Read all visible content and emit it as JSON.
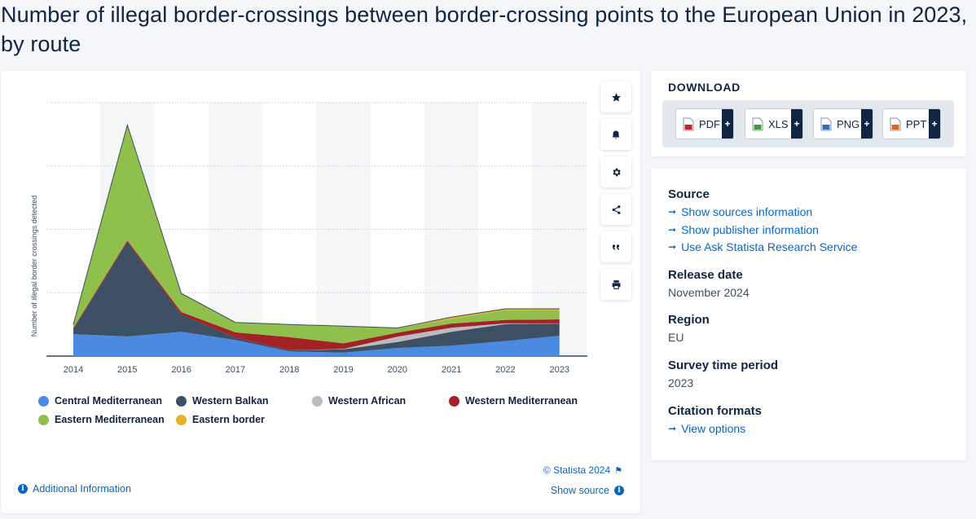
{
  "page": {
    "title": "Number of illegal border-crossings between border-crossing points to the European Union in 2023, by route"
  },
  "chart_data": {
    "type": "area",
    "stacked": true,
    "title": "Number of illegal border-crossings between border-crossing points to the European Union in 2023, by route",
    "xlabel": "",
    "ylabel": "Number of illegal border crossings detected",
    "x": [
      "2014",
      "2015",
      "2016",
      "2017",
      "2018",
      "2019",
      "2020",
      "2021",
      "2022",
      "2023"
    ],
    "ylim": [
      0,
      1100
    ],
    "grid": true,
    "y_ticks_visible": false,
    "legend_position": "bottom",
    "series": [
      {
        "name": "Central Mediterranean",
        "color": "#4a8ae3",
        "values": [
          95,
          85,
          105,
          70,
          20,
          15,
          35,
          45,
          65,
          88
        ]
      },
      {
        "name": "Western Balkan",
        "color": "#3d4f63",
        "values": [
          20,
          410,
          75,
          10,
          5,
          14,
          26,
          60,
          74,
          53
        ]
      },
      {
        "name": "Western African",
        "color": "#b8bcc1",
        "values": [
          0,
          0,
          0,
          0,
          0,
          2,
          23,
          18,
          3,
          1
        ]
      },
      {
        "name": "Western Mediterranean",
        "color": "#a32225",
        "values": [
          6,
          7,
          11,
          23,
          57,
          24,
          17,
          18,
          15,
          17
        ]
      },
      {
        "name": "Eastern Mediterranean",
        "color": "#8fc04b",
        "values": [
          15,
          500,
          80,
          42,
          54,
          74,
          20,
          20,
          42,
          40
        ]
      },
      {
        "name": "Eastern border",
        "color": "#e8b023",
        "values": [
          1,
          1,
          1,
          1,
          1,
          1,
          1,
          8,
          6,
          6
        ]
      }
    ]
  },
  "chart_footer": {
    "copyright": "© Statista 2024",
    "additional_info": "Additional Information",
    "show_source": "Show source"
  },
  "download": {
    "title": "DOWNLOAD",
    "buttons": [
      {
        "label": "PDF",
        "color": "#c8202a"
      },
      {
        "label": "XLS",
        "color": "#3f9b3a"
      },
      {
        "label": "PNG",
        "color": "#2e6fc2"
      },
      {
        "label": "PPT",
        "color": "#e0651f"
      }
    ]
  },
  "info": {
    "source_heading": "Source",
    "source_links": [
      "Show sources information",
      "Show publisher information",
      "Use Ask Statista Research Service"
    ],
    "release_heading": "Release date",
    "release_value": "November 2024",
    "region_heading": "Region",
    "region_value": "EU",
    "survey_heading": "Survey time period",
    "survey_value": "2023",
    "citation_heading": "Citation formats",
    "citation_link": "View options"
  }
}
